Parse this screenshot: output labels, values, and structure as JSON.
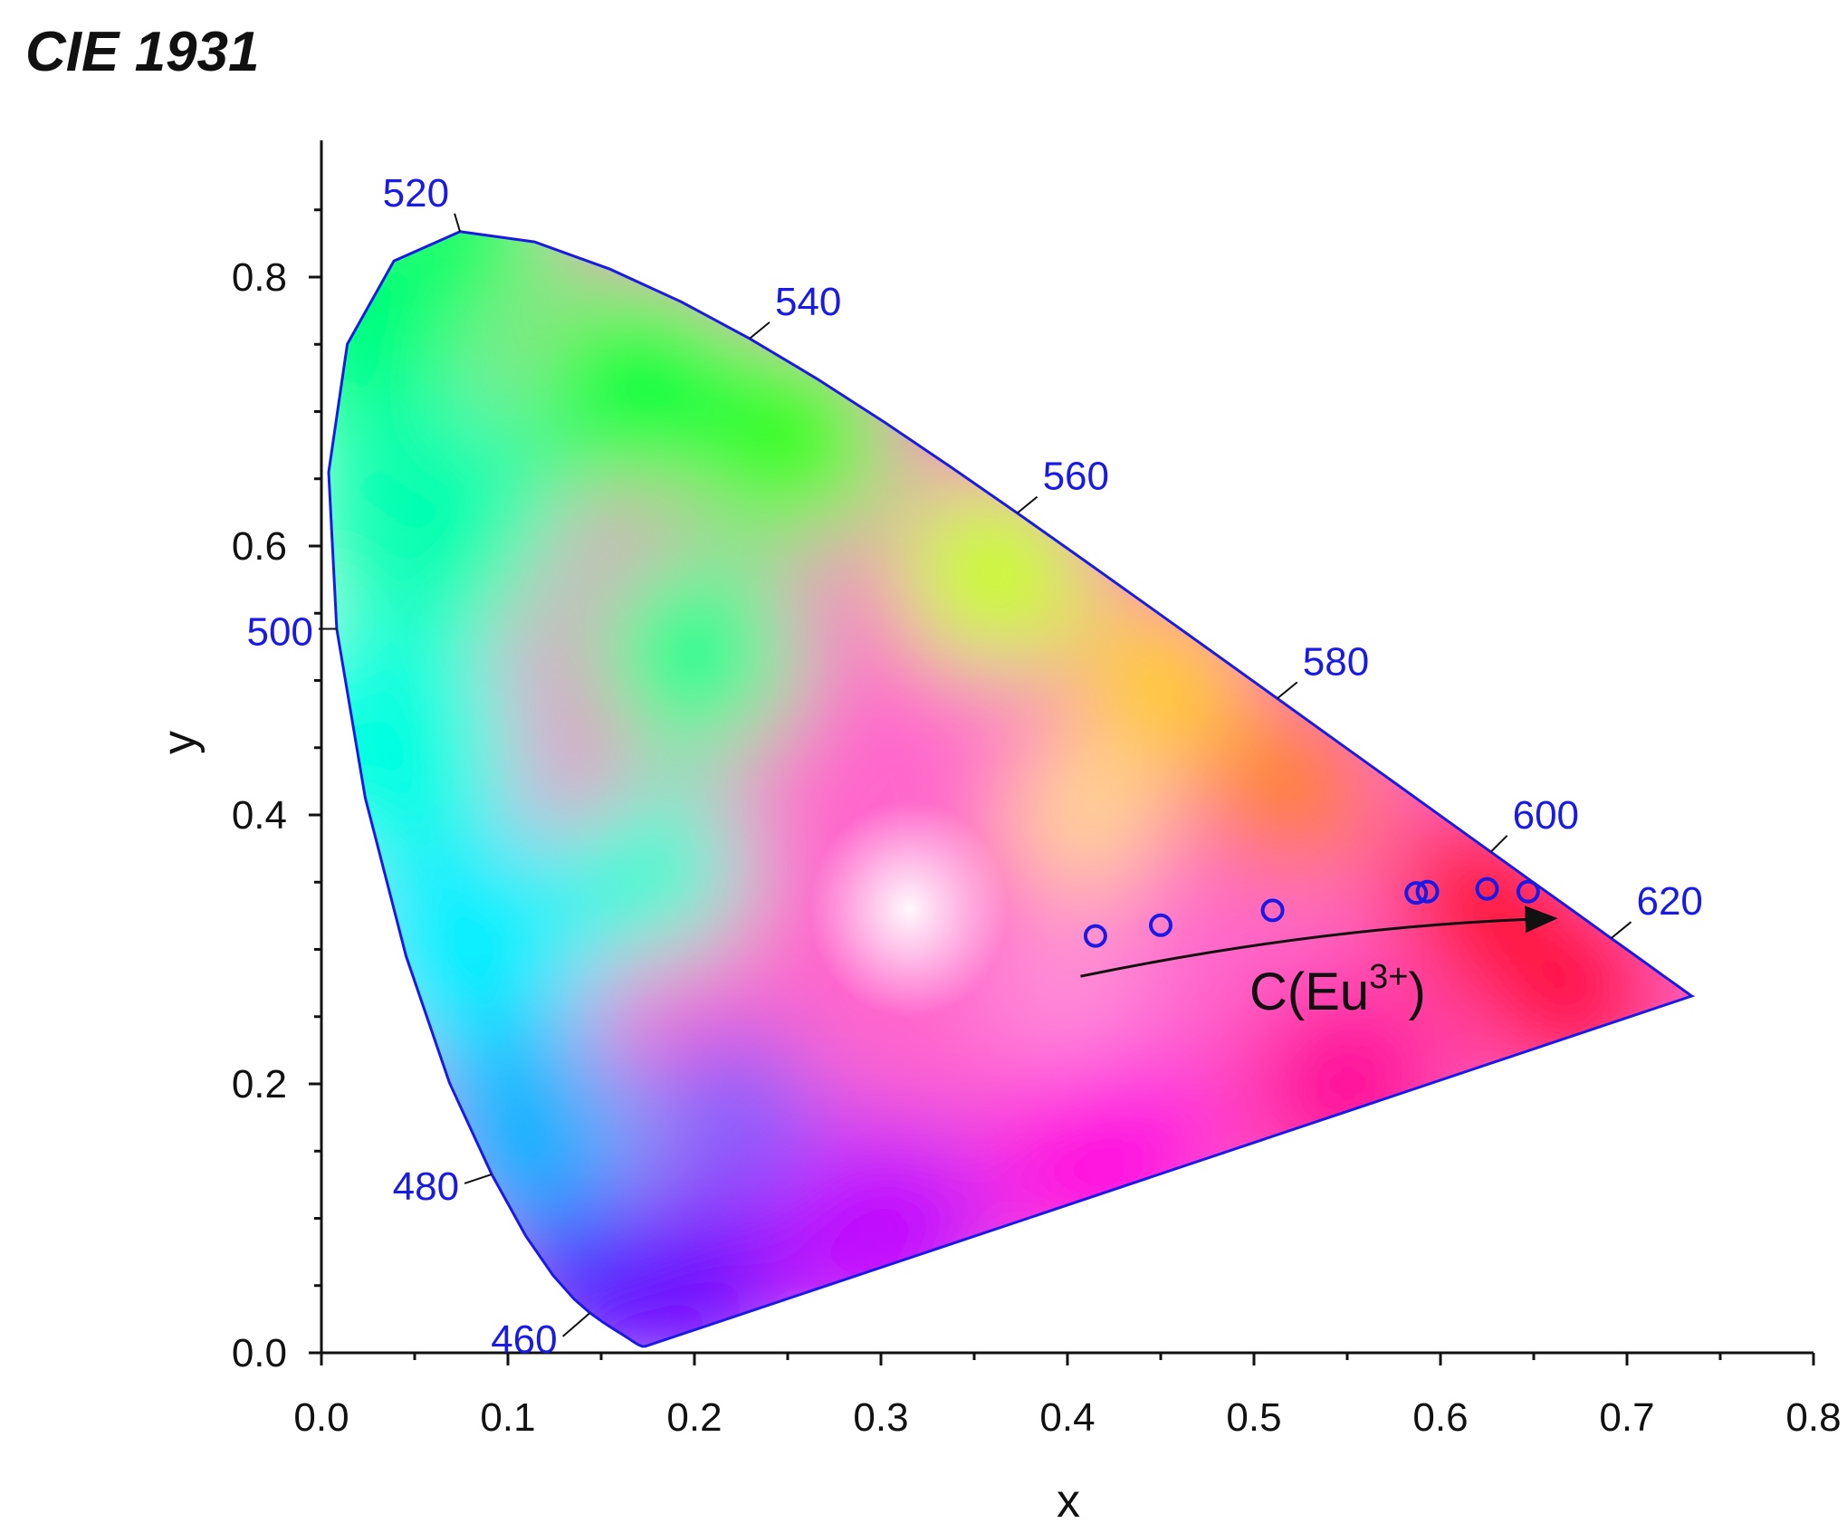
{
  "title": "CIE 1931",
  "chart_data": {
    "type": "scatter",
    "title": "CIE 1931",
    "xlabel": "x",
    "ylabel": "y",
    "xlim": [
      0.0,
      0.8
    ],
    "ylim": [
      0.0,
      0.9
    ],
    "x_ticks": [
      "0.0",
      "0.1",
      "0.2",
      "0.3",
      "0.4",
      "0.5",
      "0.6",
      "0.7",
      "0.8"
    ],
    "y_ticks": [
      "0.0",
      "0.2",
      "0.4",
      "0.6",
      "0.8"
    ],
    "grid": false,
    "spectral_locus": [
      [
        0.1741,
        0.005
      ],
      [
        0.1738,
        0.0049
      ],
      [
        0.1736,
        0.0049
      ],
      [
        0.1733,
        0.0048
      ],
      [
        0.173,
        0.0048
      ],
      [
        0.1726,
        0.0048
      ],
      [
        0.1721,
        0.0048
      ],
      [
        0.1714,
        0.0051
      ],
      [
        0.1703,
        0.0058
      ],
      [
        0.1689,
        0.0069
      ],
      [
        0.1669,
        0.0086
      ],
      [
        0.1644,
        0.0109
      ],
      [
        0.1611,
        0.0138
      ],
      [
        0.1566,
        0.0177
      ],
      [
        0.151,
        0.0227
      ],
      [
        0.144,
        0.0297
      ],
      [
        0.1355,
        0.0399
      ],
      [
        0.1241,
        0.0578
      ],
      [
        0.1096,
        0.0868
      ],
      [
        0.0913,
        0.1327
      ],
      [
        0.0687,
        0.2007
      ],
      [
        0.0454,
        0.295
      ],
      [
        0.0235,
        0.4127
      ],
      [
        0.0082,
        0.5384
      ],
      [
        0.0039,
        0.6548
      ],
      [
        0.0139,
        0.7502
      ],
      [
        0.0389,
        0.812
      ],
      [
        0.0743,
        0.8338
      ],
      [
        0.1142,
        0.8262
      ],
      [
        0.1547,
        0.8059
      ],
      [
        0.1929,
        0.7816
      ],
      [
        0.2296,
        0.7543
      ],
      [
        0.2658,
        0.7243
      ],
      [
        0.3016,
        0.6923
      ],
      [
        0.3373,
        0.6589
      ],
      [
        0.3731,
        0.6245
      ],
      [
        0.4087,
        0.5896
      ],
      [
        0.4441,
        0.5547
      ],
      [
        0.4788,
        0.5202
      ],
      [
        0.5125,
        0.4866
      ],
      [
        0.5448,
        0.4544
      ],
      [
        0.5752,
        0.4242
      ],
      [
        0.6029,
        0.3965
      ],
      [
        0.627,
        0.3725
      ],
      [
        0.6482,
        0.3514
      ],
      [
        0.6658,
        0.334
      ],
      [
        0.6801,
        0.3197
      ],
      [
        0.6915,
        0.3083
      ],
      [
        0.7006,
        0.2993
      ],
      [
        0.7079,
        0.292
      ],
      [
        0.714,
        0.2859
      ],
      [
        0.719,
        0.2809
      ],
      [
        0.723,
        0.277
      ],
      [
        0.726,
        0.274
      ],
      [
        0.7283,
        0.2717
      ],
      [
        0.73,
        0.27
      ],
      [
        0.7311,
        0.2689
      ],
      [
        0.732,
        0.268
      ],
      [
        0.7327,
        0.2673
      ],
      [
        0.7334,
        0.2666
      ],
      [
        0.734,
        0.266
      ],
      [
        0.7344,
        0.2656
      ],
      [
        0.7346,
        0.2654
      ],
      [
        0.7347,
        0.2653
      ]
    ],
    "wavelength_labels": [
      {
        "label": "460",
        "x": 0.144,
        "y": 0.0297
      },
      {
        "label": "480",
        "x": 0.0913,
        "y": 0.1327
      },
      {
        "label": "500",
        "x": 0.0082,
        "y": 0.5384
      },
      {
        "label": "520",
        "x": 0.0743,
        "y": 0.8338
      },
      {
        "label": "540",
        "x": 0.2296,
        "y": 0.7543
      },
      {
        "label": "560",
        "x": 0.3731,
        "y": 0.6245
      },
      {
        "label": "580",
        "x": 0.5125,
        "y": 0.4866
      },
      {
        "label": "600",
        "x": 0.627,
        "y": 0.3725
      },
      {
        "label": "620",
        "x": 0.6915,
        "y": 0.3083
      }
    ],
    "points": {
      "x": [
        0.415,
        0.45,
        0.51,
        0.587,
        0.593,
        0.625,
        0.647
      ],
      "y": [
        0.31,
        0.318,
        0.329,
        0.342,
        0.343,
        0.345,
        0.343
      ]
    },
    "annotation": {
      "text": "C(Eu",
      "sup": "3+",
      "tail": ")"
    },
    "colors": {
      "locus": "#1a1ae6",
      "points": "#1a1ae6",
      "axis": "#111111",
      "arrow": "#111111"
    }
  }
}
